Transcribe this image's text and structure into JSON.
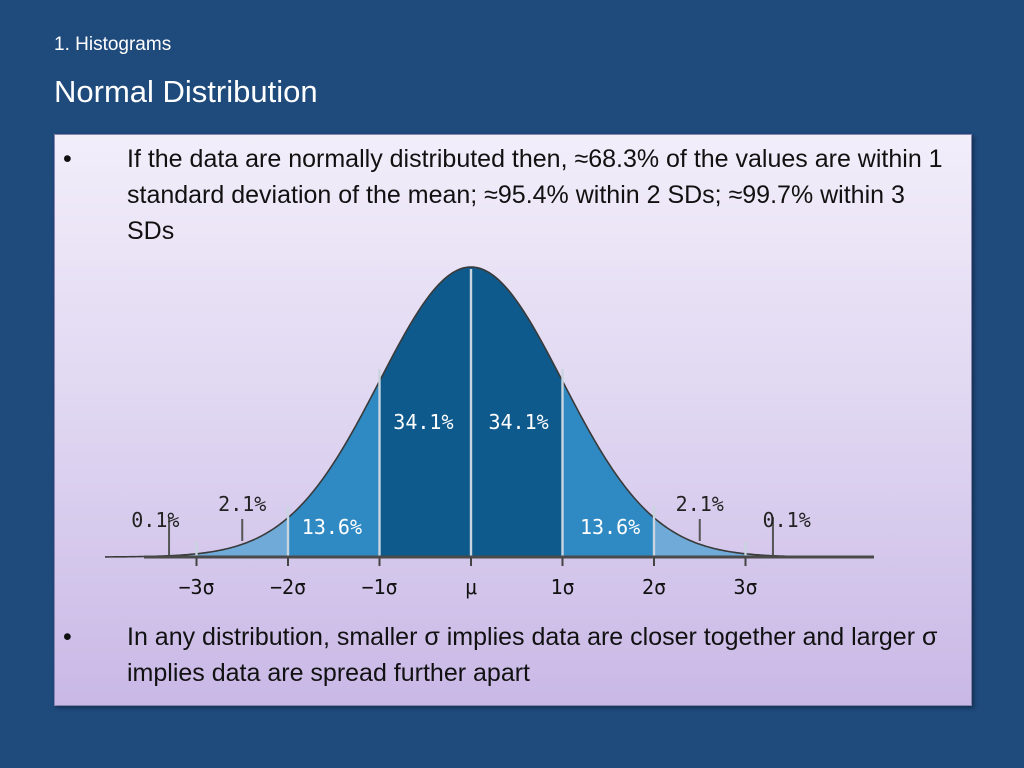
{
  "slide": {
    "section": "1. Histograms",
    "title": "Normal Distribution"
  },
  "bullets": [
    {
      "symbol": "•",
      "text": "If the data are normally distributed then, ≈68.3% of the values are within 1 standard deviation of the mean; ≈95.4% within 2 SDs; ≈99.7% within 3 SDs"
    },
    {
      "symbol": "•",
      "text": "In any distribution, smaller σ implies data are closer together and larger σ implies data are spread further apart"
    }
  ],
  "chart_data": {
    "type": "area",
    "xlim": [
      -4,
      4
    ],
    "x_ticks": [
      "−3σ",
      "−2σ",
      "−1σ",
      "μ",
      "1σ",
      "2σ",
      "3σ"
    ],
    "regions": [
      {
        "from": -4,
        "to": -3,
        "label": "0.1%",
        "color": "#8fb8d8"
      },
      {
        "from": -3,
        "to": -2,
        "label": "2.1%",
        "color": "#6faad8"
      },
      {
        "from": -2,
        "to": -1,
        "label": "13.6%",
        "color": "#2f8ac4"
      },
      {
        "from": -1,
        "to": 0,
        "label": "34.1%",
        "color": "#0f5a8c"
      },
      {
        "from": 0,
        "to": 1,
        "label": "34.1%",
        "color": "#0f5a8c"
      },
      {
        "from": 1,
        "to": 2,
        "label": "13.6%",
        "color": "#2f8ac4"
      },
      {
        "from": 2,
        "to": 3,
        "label": "2.1%",
        "color": "#6faad8"
      },
      {
        "from": 3,
        "to": 4,
        "label": "0.1%",
        "color": "#8fb8d8"
      }
    ],
    "grid": false
  }
}
